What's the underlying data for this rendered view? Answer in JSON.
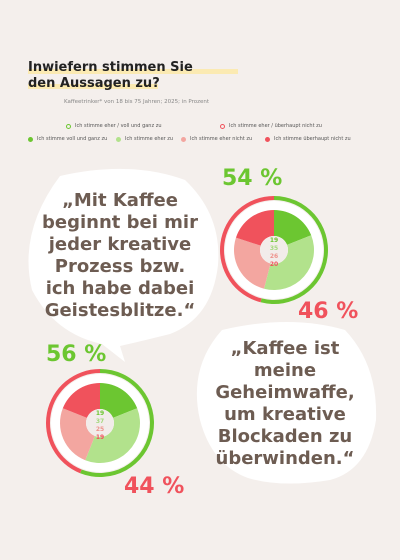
{
  "header": {
    "title_line1": "Inwiefern stimmen Sie",
    "title_line2": "den Aussagen zu?",
    "subtitle": "Kaffeetrinker* von 18 bis 75 Jahren; 2025; in Prozent"
  },
  "legend": {
    "agree_total": "Ich stimme eher / voll und ganz zu",
    "disagree_total": "Ich stimme eher / überhaupt nicht zu",
    "fully_agree": "Ich stimme voll und ganz zu",
    "rather_agree": "Ich stimme eher zu",
    "rather_disagree": "Ich stimme eher nicht zu",
    "not_at_all": "Ich stimme überhaupt nicht zu"
  },
  "colors": {
    "fully_agree": "#6cc631",
    "rather_agree": "#b2e28c",
    "rather_disagree": "#f3a6a0",
    "not_at_all": "#f0525c",
    "agree_ring": "#6cc631",
    "disagree_ring": "#f0525c",
    "background": "#f4efec",
    "quote_text": "#6d5c52"
  },
  "quotes": {
    "q1": [
      "„Mit Kaffee",
      "beginnt bei mir",
      "jeder kreative",
      "Prozess bzw.",
      "ich habe dabei",
      "Geistesblitze.“"
    ],
    "q2": [
      "„Kaffee ist",
      "meine",
      "Geheimwaffe,",
      "um kreative",
      "Blockaden zu",
      "überwinden.“"
    ]
  },
  "chart_data": [
    {
      "type": "pie",
      "statement": "„Mit Kaffee beginnt bei mir jeder kreative Prozess bzw. ich habe dabei Geistesblitze.“",
      "categories": [
        "Ich stimme voll und ganz zu",
        "Ich stimme eher zu",
        "Ich stimme eher nicht zu",
        "Ich stimme überhaupt nicht zu"
      ],
      "values": [
        19,
        35,
        26,
        20
      ],
      "labels": [
        "19",
        "35",
        "26",
        "20"
      ],
      "agree_total": 54,
      "disagree_total": 46,
      "agree_label": "54 %",
      "disagree_label": "46 %"
    },
    {
      "type": "pie",
      "statement": "„Kaffee ist meine Geheimwaffe, um kreative Blockaden zu überwinden.“",
      "categories": [
        "Ich stimme voll und ganz zu",
        "Ich stimme eher zu",
        "Ich stimme eher nicht zu",
        "Ich stimme überhaupt nicht zu"
      ],
      "values": [
        19,
        37,
        25,
        19
      ],
      "labels": [
        "19",
        "37",
        "25",
        "19"
      ],
      "agree_total": 56,
      "disagree_total": 44,
      "agree_label": "56 %",
      "disagree_label": "44 %"
    }
  ]
}
